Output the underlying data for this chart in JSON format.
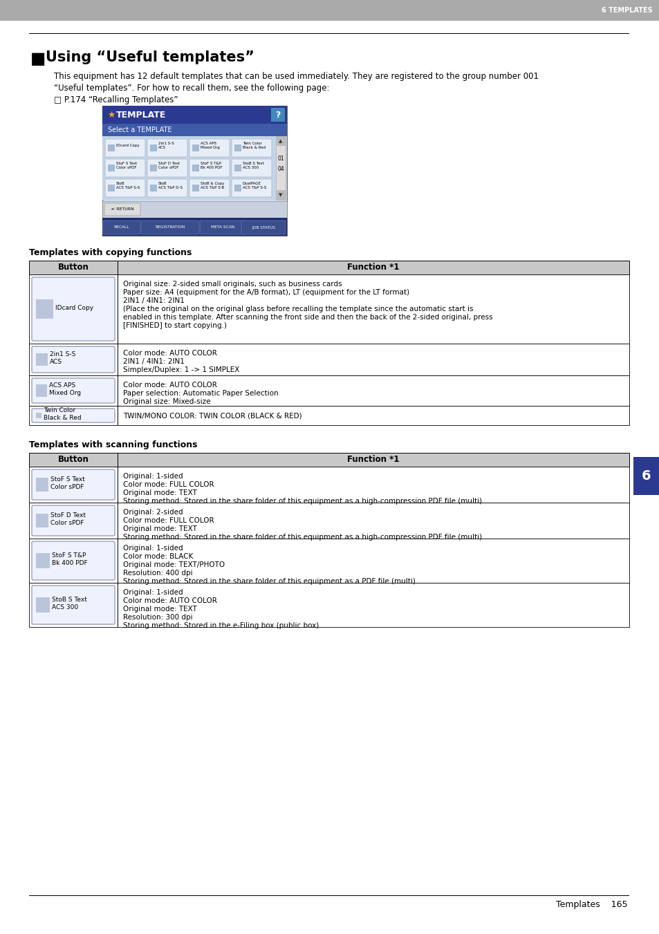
{
  "page_title": "6 TEMPLATES",
  "section_title": "Using “Useful templates”",
  "intro_text": [
    "This equipment has 12 default templates that can be used immediately. They are registered to the group number 001",
    "“Useful templates”. For how to recall them, see the following page:",
    "□ P.174 “Recalling Templates”"
  ],
  "template_ui": {
    "header_color": "#2B3990",
    "header_text": "TEMPLATE",
    "subheader_text": "Select a TEMPLATE",
    "subheader_color": "#3D5BA9",
    "bg_color": "#DDEEFF",
    "buttons_row1": [
      "IDcard Copy",
      "2in1 S-S\nACS",
      "ACS APS\nMixed Org",
      "Twin Color\nBlack & Red"
    ],
    "buttons_row2": [
      "StoF S Text\nColor sPDF",
      "StoF D Text\nColor sPDF",
      "StoF S T&P\nBk 400 PDF",
      "StoB S Text\nACS 300"
    ],
    "buttons_row3": [
      "StoB\nACS T&P S-S",
      "StoB\nACS T&P D-S",
      "StoB & Copy\nACS T&P S-B",
      "DualPAGE\nACS T&P S-S"
    ]
  },
  "copy_table_title": "Templates with copying functions",
  "copy_table_header": [
    "Button",
    "Function *1"
  ],
  "copy_rows": [
    {
      "button_label": "IDcard Copy",
      "function_text": "Original size: 2-sided small originals, such as business cards\nPaper size: A4 (equipment for the A/B format), LT (equipment for the LT format)\n2IN1 / 4IN1: 2IN1\n(Place the original on the original glass before recalling the template since the automatic start is\nenabled in this template. After scanning the front side and then the back of the 2-sided original, press\n[FINISHED] to start copying.)"
    },
    {
      "button_label": "2in1 S-S\nACS",
      "function_text": "Color mode: AUTO COLOR\n2IN1 / 4IN1: 2IN1\nSimplex/Duplex: 1 -> 1 SIMPLEX"
    },
    {
      "button_label": "ACS APS\nMixed Org",
      "function_text": "Color mode: AUTO COLOR\nPaper selection: Automatic Paper Selection\nOriginal size: Mixed-size"
    },
    {
      "button_label": "Twin Color\nBlack & Red",
      "function_text": "TWIN/MONO COLOR: TWIN COLOR (BLACK & RED)"
    }
  ],
  "scan_table_title": "Templates with scanning functions",
  "scan_table_header": [
    "Button",
    "Function *1"
  ],
  "scan_rows": [
    {
      "button_label": "StoF S Text\nColor sPDF",
      "function_text": "Original: 1-sided\nColor mode: FULL COLOR\nOriginal mode: TEXT\nStoring method: Stored in the share folder of this equipment as a high-compression PDF file (multi)"
    },
    {
      "button_label": "StoF D Text\nColor sPDF",
      "function_text": "Original: 2-sided\nColor mode: FULL COLOR\nOriginal mode: TEXT\nStoring method: Stored in the share folder of this equipment as a high-compression PDF file (multi)"
    },
    {
      "button_label": "StoF S T&P\nBk 400 PDF",
      "function_text": "Original: 1-sided\nColor mode: BLACK\nOriginal mode: TEXT/PHOTO\nResolution: 400 dpi\nStoring method: Stored in the share folder of this equipment as a PDF file (multi)"
    },
    {
      "button_label": "StoB S Text\nACS 300",
      "function_text": "Original: 1-sided\nColor mode: AUTO COLOR\nOriginal mode: TEXT\nResolution: 300 dpi\nStoring method: Stored in the e-Filing box (public box)"
    }
  ],
  "footer_text": "Templates    165",
  "tab_label": "6",
  "header_bg": "#AAAAAA",
  "header_text_color": "#FFFFFF",
  "tab_color": "#2B3990"
}
